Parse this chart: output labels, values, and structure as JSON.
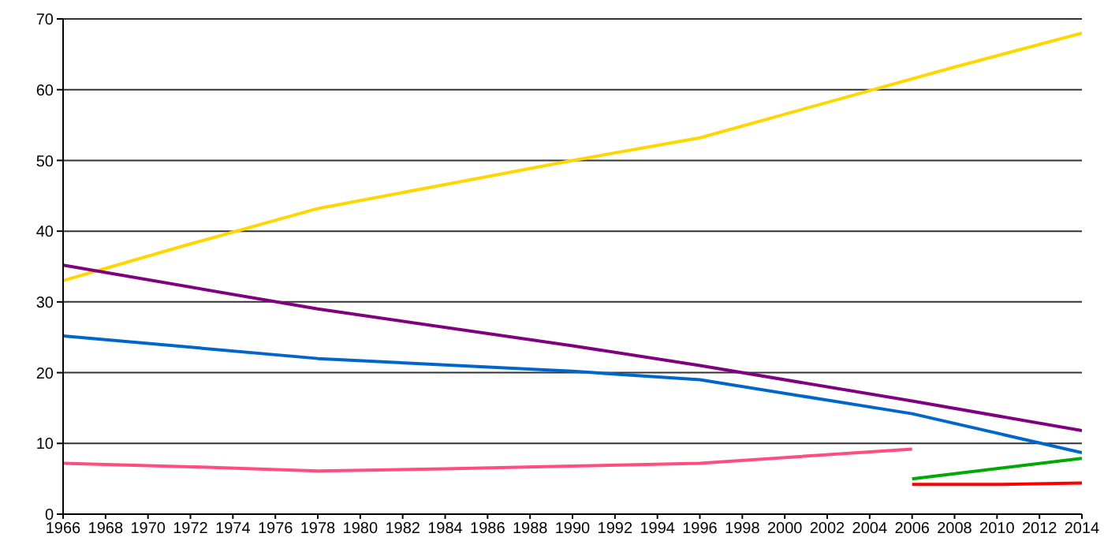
{
  "chart_data": {
    "type": "line",
    "xlim": [
      1966,
      2014
    ],
    "xticks": [
      1966,
      1968,
      1970,
      1972,
      1974,
      1976,
      1978,
      1980,
      1982,
      1984,
      1986,
      1988,
      1990,
      1992,
      1994,
      1996,
      1998,
      2000,
      2002,
      2004,
      2006,
      2008,
      2010,
      2012,
      2014
    ],
    "ylim": [
      0,
      70
    ],
    "yticks": [
      0,
      10,
      20,
      30,
      40,
      50,
      60,
      70
    ],
    "grid": "y",
    "marker": "none",
    "line_style": "solid",
    "series": [
      {
        "color": "#ffd700",
        "x": [
          1966,
          1972,
          1978,
          1984,
          1990,
          1996,
          2002,
          2008,
          2014
        ],
        "values": [
          33,
          38.2,
          43.2,
          46.6,
          50,
          53.2,
          58.2,
          63.2,
          68
        ]
      },
      {
        "color": "#800080",
        "x": [
          1966,
          1978,
          1990,
          1996,
          2006,
          2014
        ],
        "values": [
          35.2,
          29,
          23.8,
          21,
          16,
          11.8
        ]
      },
      {
        "color": "#0066cc",
        "x": [
          1966,
          1978,
          1990,
          1996,
          2006,
          2014
        ],
        "values": [
          25.2,
          22,
          20.2,
          19,
          14.2,
          8.7
        ]
      },
      {
        "color": "#ff4d80",
        "x": [
          1966,
          1972,
          1978,
          1984,
          1990,
          1996,
          2006
        ],
        "values": [
          7.2,
          6.7,
          6.1,
          6.4,
          6.8,
          7.2,
          9.2
        ]
      },
      {
        "color": "#00aa00",
        "x": [
          2006,
          2014
        ],
        "values": [
          5,
          7.9
        ]
      },
      {
        "color": "#ff0000",
        "x": [
          2006,
          2010,
          2014
        ],
        "values": [
          4.2,
          4.2,
          4.4
        ]
      }
    ]
  }
}
